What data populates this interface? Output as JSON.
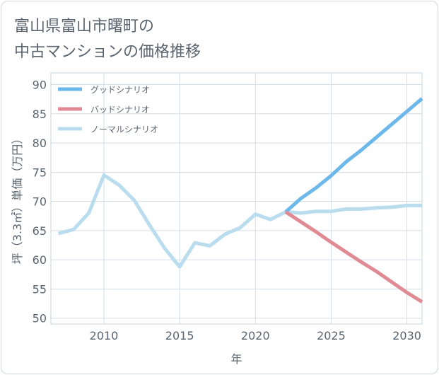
{
  "title_lines": [
    "富山県富山市曙町の",
    "中古マンションの価格推移"
  ],
  "chart_data": {
    "type": "line",
    "title": "富山県富山市曙町の中古マンションの価格推移",
    "xlabel": "年",
    "ylabel": "坪（3.3㎡）単価（万円）",
    "xlim": [
      2006.5,
      2031
    ],
    "ylim": [
      49,
      92
    ],
    "xticks": [
      2010,
      2015,
      2020,
      2025,
      2030
    ],
    "yticks": [
      50,
      55,
      60,
      65,
      70,
      75,
      80,
      85,
      90
    ],
    "grid": true,
    "legend_position": "top-left",
    "series": [
      {
        "name": "グッドシナリオ",
        "color": "#6cb8ea",
        "x": [
          2022,
          2023,
          2024,
          2025,
          2026,
          2027,
          2028,
          2029,
          2030,
          2031
        ],
        "values": [
          68.2,
          70.5,
          72.3,
          74.4,
          76.8,
          78.8,
          81.0,
          83.2,
          85.4,
          87.6
        ]
      },
      {
        "name": "バッドシナリオ",
        "color": "#e08a94",
        "x": [
          2022,
          2023,
          2024,
          2025,
          2026,
          2027,
          2028,
          2029,
          2030,
          2031
        ],
        "values": [
          68.2,
          66.5,
          64.8,
          63.0,
          61.3,
          59.6,
          58.0,
          56.2,
          54.4,
          52.8
        ]
      },
      {
        "name": "ノーマルシナリオ",
        "color": "#b9dcee",
        "x": [
          2007,
          2008,
          2009,
          2010,
          2011,
          2012,
          2013,
          2014,
          2015,
          2016,
          2017,
          2018,
          2019,
          2020,
          2021,
          2022,
          2023,
          2024,
          2025,
          2026,
          2027,
          2028,
          2029,
          2030,
          2031
        ],
        "values": [
          64.5,
          65.2,
          68.0,
          74.5,
          72.8,
          70.2,
          66.0,
          62.0,
          58.8,
          62.9,
          62.4,
          64.4,
          65.5,
          67.8,
          66.9,
          68.2,
          68.0,
          68.3,
          68.3,
          68.7,
          68.7,
          68.9,
          69.0,
          69.3,
          69.3
        ]
      }
    ]
  }
}
